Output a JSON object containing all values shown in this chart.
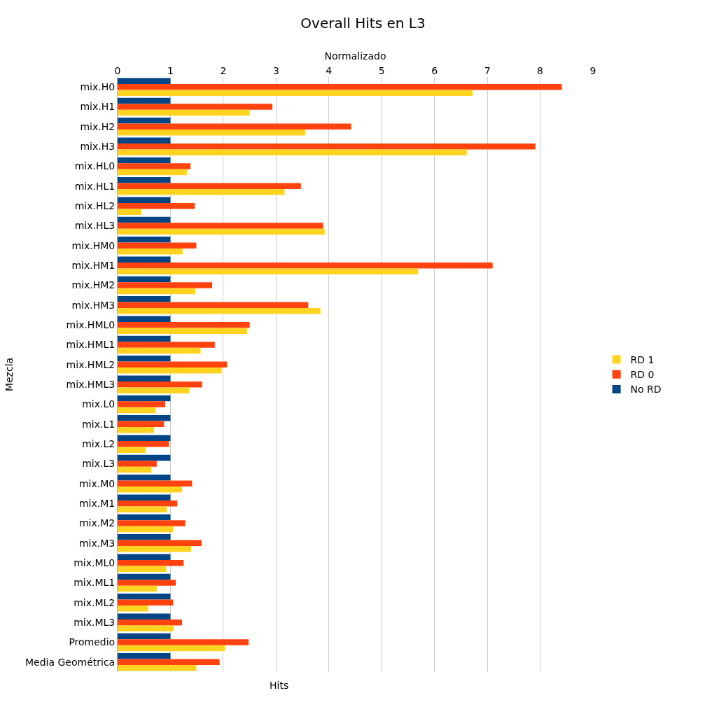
{
  "chart_data": {
    "type": "bar",
    "orientation": "horizontal",
    "title": "Overall Hits en L3",
    "xlabel": "Normalizado",
    "ylabel": "Mezcla",
    "annotations": [
      "Hits"
    ],
    "categories": [
      "mix.H0",
      "mix.H1",
      "mix.H2",
      "mix.H3",
      "mix.HL0",
      "mix.HL1",
      "mix.HL2",
      "mix.HL3",
      "mix.HM0",
      "mix.HM1",
      "mix.HM2",
      "mix.HM3",
      "mix.HML0",
      "mix.HML1",
      "mix.HML2",
      "mix.HML3",
      "mix.L0",
      "mix.L1",
      "mix.L2",
      "mix.L3",
      "mix.M0",
      "mix.M1",
      "mix.M2",
      "mix.M3",
      "mix.ML0",
      "mix.ML1",
      "mix.ML2",
      "mix.ML3",
      "Promedio",
      "Media Geométrica"
    ],
    "series": [
      {
        "name": "No RD",
        "color": "#004586",
        "values": [
          1,
          1,
          1,
          1,
          1,
          1,
          1,
          1,
          1,
          1,
          1,
          1,
          1,
          1,
          1,
          1,
          1,
          1,
          1,
          1,
          1,
          1,
          1,
          1,
          1,
          1,
          1,
          1,
          1,
          1
        ]
      },
      {
        "name": "RD 0",
        "color": "#ff420e",
        "values": [
          8.41,
          2.93,
          4.42,
          7.91,
          1.38,
          3.47,
          1.46,
          3.89,
          1.49,
          7.1,
          1.79,
          3.61,
          2.5,
          1.84,
          2.07,
          1.6,
          0.9,
          0.88,
          0.97,
          0.74,
          1.41,
          1.13,
          1.28,
          1.59,
          1.25,
          1.1,
          1.05,
          1.22,
          2.48,
          1.93
        ]
      },
      {
        "name": "RD 1",
        "color": "#ffd320",
        "values": [
          6.72,
          2.5,
          3.55,
          6.61,
          1.31,
          3.16,
          0.45,
          3.92,
          1.23,
          5.69,
          1.47,
          3.84,
          2.45,
          1.57,
          1.97,
          1.36,
          0.72,
          0.69,
          0.53,
          0.64,
          1.22,
          0.93,
          1.05,
          1.39,
          0.92,
          0.74,
          0.58,
          1.06,
          2.03,
          1.49
        ]
      }
    ],
    "xlim": [
      0,
      9
    ],
    "xticks": [
      0,
      1,
      2,
      3,
      4,
      5,
      6,
      7,
      8,
      9
    ],
    "grid": "x",
    "legend": "right"
  }
}
